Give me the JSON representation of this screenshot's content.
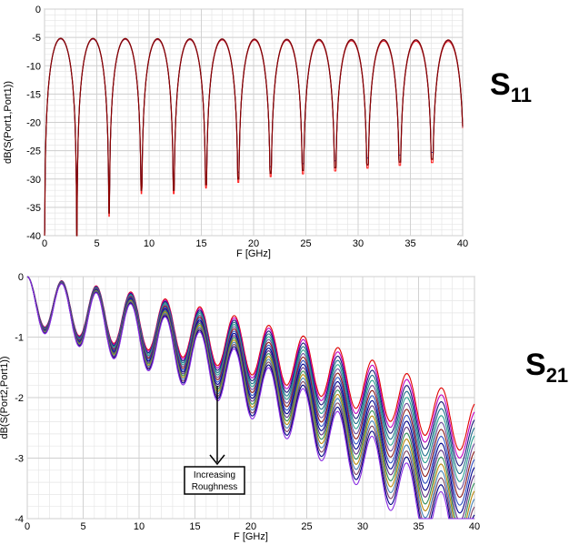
{
  "chart_data": [
    {
      "type": "line",
      "side_label": {
        "main": "S",
        "sub": "11"
      },
      "xlabel": "F [GHz]",
      "ylabel": "dB(S(Port1,Port1))",
      "xlim": [
        0,
        40
      ],
      "ylim": [
        -40,
        0
      ],
      "x_ticks": [
        0,
        5,
        10,
        15,
        20,
        25,
        30,
        35,
        40
      ],
      "y_ticks": [
        0,
        -5,
        -10,
        -15,
        -20,
        -25,
        -30,
        -35,
        -40
      ],
      "grid": true,
      "series_colors": [
        "#ff2020",
        "#2040c0",
        "#404040",
        "#8b0000"
      ],
      "peak_value": -5.2,
      "null_frequencies": [
        3.1,
        6.2,
        9.25,
        12.35,
        15.45,
        18.55,
        21.65,
        24.75,
        27.8,
        30.9,
        34.0,
        37.1
      ],
      "null_depths": [
        -40,
        -36,
        -32,
        -32,
        -31,
        -30,
        -29,
        -28.5,
        -28,
        -27.5,
        -27,
        -26.5
      ]
    },
    {
      "type": "line",
      "side_label": {
        "main": "S",
        "sub": "21"
      },
      "xlabel": "F [GHz]",
      "ylabel": "dB(S(Port2,Port1))",
      "xlim": [
        0,
        40
      ],
      "ylim": [
        -4,
        0
      ],
      "x_ticks": [
        0,
        5,
        10,
        15,
        20,
        25,
        30,
        35,
        40
      ],
      "y_ticks": [
        0,
        -1,
        -2,
        -3,
        -4
      ],
      "grid": true,
      "series_colors": [
        "#e00000",
        "#c000c0",
        "#1a1a7a",
        "#1f6f8b",
        "#2a9d8f",
        "#6b4c9a",
        "#8b1a1a",
        "#3050c0",
        "#00008b",
        "#5a2d82",
        "#2e8b57",
        "#b8860b",
        "#4682b4",
        "#7b3f61",
        "#000080",
        "#8a2be2"
      ],
      "annotation": {
        "line1": "Increasing",
        "line2": "Roughness"
      }
    }
  ]
}
